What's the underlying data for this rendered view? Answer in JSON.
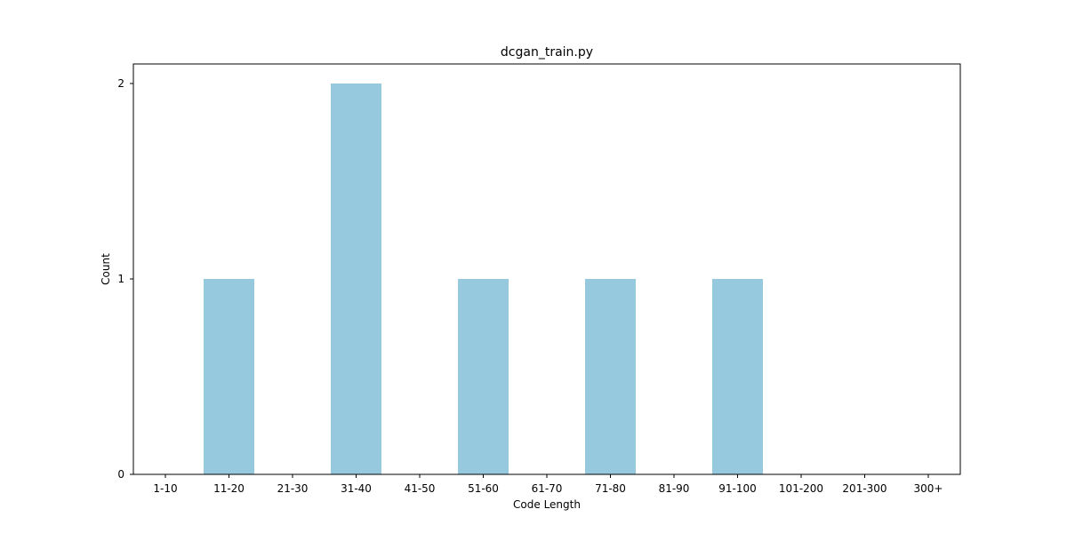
{
  "chart_data": {
    "type": "bar",
    "title": "dcgan_train.py",
    "xlabel": "Code Length",
    "ylabel": "Count",
    "categories": [
      "1-10",
      "11-20",
      "21-30",
      "31-40",
      "41-50",
      "51-60",
      "61-70",
      "71-80",
      "81-90",
      "91-100",
      "101-200",
      "201-300",
      "300+"
    ],
    "values": [
      0,
      1,
      0,
      2,
      0,
      1,
      0,
      1,
      0,
      1,
      0,
      0,
      0
    ],
    "ylim": [
      0,
      2.1
    ],
    "yticks": [
      0,
      1,
      2
    ],
    "bar_color": "#96c9de",
    "grid": false,
    "legend": "none"
  }
}
